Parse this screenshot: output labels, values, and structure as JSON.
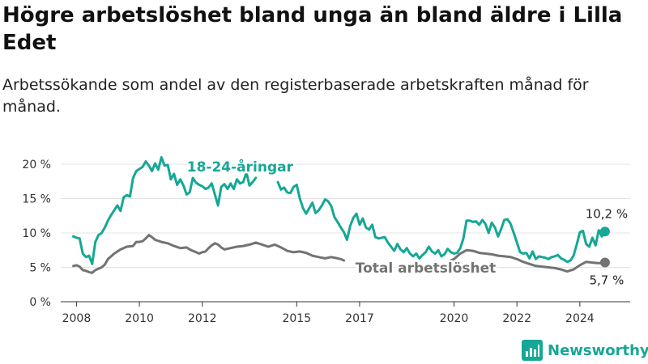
{
  "header": {
    "title": "Högre arbetslöshet bland unga än bland äldre i Lilla Edet",
    "subtitle": "Arbetssökande som andel av den registerbaserade arbetskraften månad för månad."
  },
  "brand": {
    "name": "Newsworthy",
    "icon": "bar-chart-logo-icon",
    "color": "#16a796"
  },
  "chart_data": {
    "type": "line",
    "ylim": [
      0,
      22
    ],
    "xlim": [
      2007.5,
      2025.6
    ],
    "grid": true,
    "y_ticks": [
      {
        "value": 0,
        "label": "0 %"
      },
      {
        "value": 5,
        "label": "5 %"
      },
      {
        "value": 10,
        "label": "10 %"
      },
      {
        "value": 15,
        "label": "15 %"
      },
      {
        "value": 20,
        "label": "20 %"
      }
    ],
    "x_ticks": [
      {
        "value": 2008,
        "label": "2008"
      },
      {
        "value": 2010,
        "label": "2010"
      },
      {
        "value": 2012,
        "label": "2012"
      },
      {
        "value": 2015,
        "label": "2015"
      },
      {
        "value": 2017,
        "label": "2017"
      },
      {
        "value": 2020,
        "label": "2020"
      },
      {
        "value": 2022,
        "label": "2022"
      },
      {
        "value": 2024,
        "label": "2024"
      }
    ],
    "series": [
      {
        "name": "18-24-åringar",
        "color": "#16a796",
        "end_label": "10,2 %",
        "segments": [
          [
            [
              2007.9,
              9.5
            ],
            [
              2008.0,
              9.3
            ],
            [
              2008.1,
              9.2
            ],
            [
              2008.2,
              7.0
            ],
            [
              2008.3,
              6.5
            ],
            [
              2008.4,
              6.7
            ],
            [
              2008.5,
              5.5
            ],
            [
              2008.6,
              8.7
            ],
            [
              2008.7,
              9.7
            ],
            [
              2008.8,
              10.0
            ],
            [
              2008.9,
              10.8
            ],
            [
              2009.0,
              11.8
            ],
            [
              2009.1,
              12.6
            ],
            [
              2009.2,
              13.3
            ],
            [
              2009.3,
              14.0
            ],
            [
              2009.4,
              13.2
            ],
            [
              2009.5,
              15.2
            ],
            [
              2009.6,
              15.5
            ],
            [
              2009.7,
              15.3
            ],
            [
              2009.8,
              18.0
            ],
            [
              2009.9,
              19.0
            ],
            [
              2010.0,
              19.3
            ],
            [
              2010.1,
              19.6
            ],
            [
              2010.2,
              20.4
            ],
            [
              2010.3,
              19.8
            ],
            [
              2010.4,
              19.0
            ],
            [
              2010.5,
              20.1
            ],
            [
              2010.6,
              19.2
            ],
            [
              2010.7,
              21.0
            ],
            [
              2010.8,
              19.8
            ],
            [
              2010.9,
              19.9
            ],
            [
              2011.0,
              17.8
            ],
            [
              2011.1,
              18.6
            ],
            [
              2011.2,
              17.0
            ],
            [
              2011.3,
              17.8
            ],
            [
              2011.4,
              16.9
            ],
            [
              2011.5,
              15.6
            ],
            [
              2011.6,
              15.9
            ],
            [
              2011.7,
              18.0
            ],
            [
              2011.8,
              17.3
            ],
            [
              2011.9,
              17.0
            ],
            [
              2012.0,
              16.8
            ],
            [
              2012.1,
              16.4
            ],
            [
              2012.2,
              16.6
            ],
            [
              2012.3,
              17.2
            ],
            [
              2012.4,
              15.6
            ],
            [
              2012.5,
              14.0
            ],
            [
              2012.6,
              16.7
            ],
            [
              2012.7,
              17.1
            ],
            [
              2012.8,
              16.4
            ],
            [
              2012.9,
              17.2
            ],
            [
              2013.0,
              16.4
            ],
            [
              2013.1,
              17.8
            ],
            [
              2013.2,
              17.2
            ],
            [
              2013.3,
              17.4
            ],
            [
              2013.4,
              18.8
            ],
            [
              2013.5,
              16.9
            ],
            [
              2013.6,
              17.4
            ],
            [
              2013.7,
              18.0
            ]
          ],
          [
            [
              2014.4,
              17.4
            ],
            [
              2014.5,
              16.3
            ],
            [
              2014.6,
              16.6
            ],
            [
              2014.7,
              15.9
            ],
            [
              2014.8,
              15.8
            ],
            [
              2014.9,
              16.7
            ],
            [
              2015.0,
              17.0
            ],
            [
              2015.1,
              15.0
            ],
            [
              2015.2,
              13.6
            ],
            [
              2015.3,
              12.8
            ],
            [
              2015.4,
              13.6
            ],
            [
              2015.5,
              14.4
            ],
            [
              2015.6,
              12.9
            ],
            [
              2015.7,
              13.3
            ],
            [
              2015.8,
              14.0
            ],
            [
              2015.9,
              14.9
            ],
            [
              2016.0,
              14.6
            ],
            [
              2016.1,
              13.9
            ],
            [
              2016.2,
              12.3
            ],
            [
              2016.3,
              11.6
            ],
            [
              2016.4,
              10.8
            ],
            [
              2016.5,
              10.1
            ],
            [
              2016.6,
              9.0
            ],
            [
              2016.7,
              11.0
            ],
            [
              2016.8,
              12.2
            ],
            [
              2016.9,
              12.8
            ],
            [
              2017.0,
              11.2
            ],
            [
              2017.1,
              12.1
            ],
            [
              2017.2,
              10.8
            ],
            [
              2017.3,
              10.5
            ],
            [
              2017.4,
              11.2
            ],
            [
              2017.5,
              9.4
            ],
            [
              2017.6,
              9.2
            ],
            [
              2017.7,
              9.3
            ],
            [
              2017.8,
              9.4
            ],
            [
              2017.9,
              8.6
            ],
            [
              2018.0,
              8.0
            ],
            [
              2018.1,
              7.4
            ],
            [
              2018.2,
              8.4
            ],
            [
              2018.3,
              7.6
            ],
            [
              2018.4,
              7.2
            ],
            [
              2018.5,
              7.8
            ],
            [
              2018.6,
              7.0
            ],
            [
              2018.7,
              6.6
            ],
            [
              2018.8,
              7.0
            ],
            [
              2018.9,
              6.3
            ],
            [
              2019.0,
              6.8
            ],
            [
              2019.1,
              7.2
            ],
            [
              2019.2,
              8.0
            ],
            [
              2019.3,
              7.3
            ],
            [
              2019.4,
              7.0
            ],
            [
              2019.5,
              7.5
            ],
            [
              2019.6,
              6.6
            ],
            [
              2019.7,
              6.9
            ],
            [
              2019.8,
              7.7
            ],
            [
              2019.9,
              7.2
            ],
            [
              2020.0,
              7.0
            ],
            [
              2020.1,
              7.1
            ],
            [
              2020.2,
              7.8
            ],
            [
              2020.3,
              9.2
            ],
            [
              2020.4,
              11.8
            ],
            [
              2020.5,
              11.8
            ],
            [
              2020.6,
              11.6
            ],
            [
              2020.7,
              11.7
            ],
            [
              2020.8,
              11.2
            ],
            [
              2020.9,
              11.9
            ],
            [
              2021.0,
              11.3
            ],
            [
              2021.1,
              10.0
            ],
            [
              2021.2,
              11.5
            ],
            [
              2021.3,
              10.8
            ],
            [
              2021.4,
              9.5
            ],
            [
              2021.5,
              10.6
            ],
            [
              2021.6,
              11.9
            ],
            [
              2021.7,
              12.0
            ],
            [
              2021.8,
              11.3
            ],
            [
              2021.9,
              10.0
            ],
            [
              2022.0,
              8.6
            ],
            [
              2022.1,
              7.2
            ],
            [
              2022.2,
              7.0
            ],
            [
              2022.3,
              7.1
            ],
            [
              2022.4,
              6.3
            ],
            [
              2022.5,
              7.3
            ],
            [
              2022.6,
              6.2
            ],
            [
              2022.7,
              6.6
            ],
            [
              2022.8,
              6.5
            ],
            [
              2022.9,
              6.4
            ],
            [
              2023.0,
              6.2
            ],
            [
              2023.1,
              6.5
            ],
            [
              2023.2,
              6.6
            ],
            [
              2023.3,
              6.8
            ],
            [
              2023.4,
              6.3
            ],
            [
              2023.5,
              6.1
            ],
            [
              2023.6,
              5.8
            ],
            [
              2023.7,
              6.0
            ],
            [
              2023.8,
              6.7
            ],
            [
              2023.9,
              8.3
            ],
            [
              2024.0,
              10.1
            ],
            [
              2024.1,
              10.3
            ],
            [
              2024.2,
              8.4
            ],
            [
              2024.3,
              8.0
            ],
            [
              2024.4,
              9.3
            ],
            [
              2024.5,
              8.2
            ],
            [
              2024.6,
              10.4
            ],
            [
              2024.7,
              9.5
            ],
            [
              2024.8,
              10.2
            ]
          ]
        ]
      },
      {
        "name": "Total arbetslöshet",
        "color": "#737373",
        "end_label": "5,7 %",
        "segments": [
          [
            [
              2007.9,
              5.2
            ],
            [
              2008.0,
              5.3
            ],
            [
              2008.1,
              5.1
            ],
            [
              2008.2,
              4.6
            ],
            [
              2008.3,
              4.5
            ],
            [
              2008.4,
              4.3
            ],
            [
              2008.5,
              4.2
            ],
            [
              2008.6,
              4.6
            ],
            [
              2008.7,
              4.8
            ],
            [
              2008.8,
              5.0
            ],
            [
              2008.9,
              5.4
            ],
            [
              2009.0,
              6.2
            ],
            [
              2009.2,
              7.0
            ],
            [
              2009.4,
              7.6
            ],
            [
              2009.6,
              8.0
            ],
            [
              2009.8,
              8.1
            ],
            [
              2009.9,
              8.7
            ],
            [
              2010.0,
              8.7
            ],
            [
              2010.1,
              8.8
            ],
            [
              2010.2,
              9.2
            ],
            [
              2010.3,
              9.7
            ],
            [
              2010.4,
              9.4
            ],
            [
              2010.5,
              9.0
            ],
            [
              2010.7,
              8.7
            ],
            [
              2010.9,
              8.5
            ],
            [
              2011.1,
              8.1
            ],
            [
              2011.3,
              7.8
            ],
            [
              2011.5,
              7.9
            ],
            [
              2011.6,
              7.6
            ],
            [
              2011.7,
              7.4
            ],
            [
              2011.8,
              7.2
            ],
            [
              2011.9,
              7.0
            ],
            [
              2012.0,
              7.2
            ],
            [
              2012.1,
              7.3
            ],
            [
              2012.2,
              7.8
            ],
            [
              2012.3,
              8.2
            ],
            [
              2012.4,
              8.5
            ],
            [
              2012.5,
              8.3
            ],
            [
              2012.6,
              7.9
            ],
            [
              2012.7,
              7.6
            ],
            [
              2012.9,
              7.8
            ],
            [
              2013.1,
              8.0
            ],
            [
              2013.3,
              8.1
            ],
            [
              2013.5,
              8.3
            ],
            [
              2013.7,
              8.6
            ],
            [
              2013.9,
              8.3
            ],
            [
              2014.1,
              8.0
            ],
            [
              2014.3,
              8.3
            ],
            [
              2014.5,
              7.9
            ],
            [
              2014.7,
              7.4
            ],
            [
              2014.9,
              7.2
            ],
            [
              2015.1,
              7.3
            ],
            [
              2015.3,
              7.1
            ],
            [
              2015.5,
              6.7
            ],
            [
              2015.7,
              6.5
            ],
            [
              2015.9,
              6.3
            ],
            [
              2016.1,
              6.5
            ],
            [
              2016.3,
              6.3
            ],
            [
              2016.4,
              6.2
            ],
            [
              2016.5,
              6.0
            ]
          ],
          [
            [
              2019.9,
              6.0
            ],
            [
              2020.0,
              6.2
            ],
            [
              2020.2,
              7.0
            ],
            [
              2020.4,
              7.5
            ],
            [
              2020.6,
              7.4
            ],
            [
              2020.8,
              7.1
            ],
            [
              2021.0,
              7.0
            ],
            [
              2021.2,
              6.9
            ],
            [
              2021.4,
              6.7
            ],
            [
              2021.6,
              6.6
            ],
            [
              2021.8,
              6.5
            ],
            [
              2022.0,
              6.2
            ],
            [
              2022.2,
              5.8
            ],
            [
              2022.4,
              5.5
            ],
            [
              2022.6,
              5.2
            ],
            [
              2022.8,
              5.1
            ],
            [
              2023.0,
              5.0
            ],
            [
              2023.2,
              4.9
            ],
            [
              2023.4,
              4.7
            ],
            [
              2023.6,
              4.4
            ],
            [
              2023.8,
              4.7
            ],
            [
              2024.0,
              5.3
            ],
            [
              2024.2,
              5.8
            ],
            [
              2024.4,
              5.7
            ],
            [
              2024.6,
              5.6
            ],
            [
              2024.8,
              5.7
            ]
          ]
        ]
      }
    ]
  }
}
